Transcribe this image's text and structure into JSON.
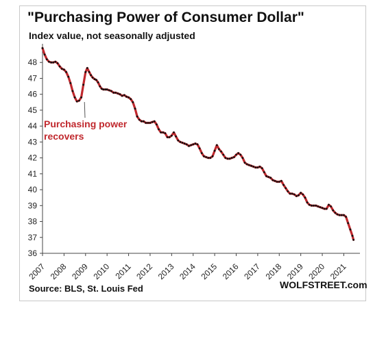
{
  "chart_data": {
    "type": "line",
    "title": "\"Purchasing  Power of Consumer Dollar\"",
    "subtitle": "Index value, not seasonally adjusted",
    "xlabel": "",
    "ylabel": "",
    "x_ticks": [
      "2007",
      "2008",
      "2009",
      "2010",
      "2011",
      "2012",
      "2013",
      "2014",
      "2015",
      "2016",
      "2017",
      "2018",
      "2019",
      "2020",
      "2021"
    ],
    "y_ticks": [
      36,
      37,
      38,
      39,
      40,
      41,
      42,
      43,
      44,
      45,
      46,
      47,
      48
    ],
    "ylim": [
      36,
      49
    ],
    "xlim": [
      2007,
      2021.75
    ],
    "grid": false,
    "line_color": "#c0282d",
    "marker_color": "#111111",
    "annotation": {
      "lines": [
        "Purchasing power",
        "recovers"
      ],
      "x": 2008.95,
      "y": 45.6
    },
    "series": [
      {
        "values": [
          [
            2007.0,
            48.9
          ],
          [
            2007.1,
            48.5
          ],
          [
            2007.2,
            48.2
          ],
          [
            2007.3,
            48.05
          ],
          [
            2007.4,
            48.0
          ],
          [
            2007.5,
            48.0
          ],
          [
            2007.6,
            48.05
          ],
          [
            2007.7,
            47.95
          ],
          [
            2007.8,
            47.75
          ],
          [
            2007.9,
            47.6
          ],
          [
            2008.0,
            47.55
          ],
          [
            2008.1,
            47.4
          ],
          [
            2008.2,
            47.1
          ],
          [
            2008.3,
            46.7
          ],
          [
            2008.4,
            46.2
          ],
          [
            2008.5,
            45.8
          ],
          [
            2008.6,
            45.55
          ],
          [
            2008.7,
            45.6
          ],
          [
            2008.8,
            45.8
          ],
          [
            2008.9,
            46.6
          ],
          [
            2009.0,
            47.4
          ],
          [
            2009.08,
            47.65
          ],
          [
            2009.17,
            47.4
          ],
          [
            2009.25,
            47.2
          ],
          [
            2009.33,
            47.05
          ],
          [
            2009.42,
            46.95
          ],
          [
            2009.5,
            46.9
          ],
          [
            2009.58,
            46.75
          ],
          [
            2009.67,
            46.5
          ],
          [
            2009.75,
            46.35
          ],
          [
            2009.83,
            46.3
          ],
          [
            2009.92,
            46.3
          ],
          [
            2010.0,
            46.3
          ],
          [
            2010.1,
            46.25
          ],
          [
            2010.2,
            46.2
          ],
          [
            2010.3,
            46.1
          ],
          [
            2010.4,
            46.1
          ],
          [
            2010.5,
            46.05
          ],
          [
            2010.6,
            46.0
          ],
          [
            2010.7,
            45.9
          ],
          [
            2010.8,
            45.95
          ],
          [
            2010.9,
            45.85
          ],
          [
            2011.0,
            45.8
          ],
          [
            2011.1,
            45.7
          ],
          [
            2011.2,
            45.5
          ],
          [
            2011.3,
            45.1
          ],
          [
            2011.4,
            44.6
          ],
          [
            2011.5,
            44.4
          ],
          [
            2011.6,
            44.3
          ],
          [
            2011.7,
            44.3
          ],
          [
            2011.8,
            44.2
          ],
          [
            2011.9,
            44.2
          ],
          [
            2012.0,
            44.2
          ],
          [
            2012.1,
            44.25
          ],
          [
            2012.2,
            44.3
          ],
          [
            2012.3,
            44.1
          ],
          [
            2012.4,
            43.8
          ],
          [
            2012.5,
            43.6
          ],
          [
            2012.6,
            43.6
          ],
          [
            2012.7,
            43.55
          ],
          [
            2012.8,
            43.3
          ],
          [
            2012.9,
            43.3
          ],
          [
            2013.0,
            43.4
          ],
          [
            2013.1,
            43.6
          ],
          [
            2013.2,
            43.35
          ],
          [
            2013.3,
            43.1
          ],
          [
            2013.4,
            43.0
          ],
          [
            2013.5,
            42.95
          ],
          [
            2013.6,
            42.9
          ],
          [
            2013.7,
            42.85
          ],
          [
            2013.8,
            42.75
          ],
          [
            2013.9,
            42.8
          ],
          [
            2014.0,
            42.85
          ],
          [
            2014.1,
            42.9
          ],
          [
            2014.2,
            42.85
          ],
          [
            2014.3,
            42.6
          ],
          [
            2014.4,
            42.3
          ],
          [
            2014.5,
            42.1
          ],
          [
            2014.6,
            42.05
          ],
          [
            2014.7,
            42.0
          ],
          [
            2014.8,
            42.0
          ],
          [
            2014.9,
            42.1
          ],
          [
            2015.0,
            42.45
          ],
          [
            2015.1,
            42.8
          ],
          [
            2015.2,
            42.55
          ],
          [
            2015.3,
            42.4
          ],
          [
            2015.4,
            42.2
          ],
          [
            2015.5,
            42.0
          ],
          [
            2015.6,
            41.95
          ],
          [
            2015.7,
            41.95
          ],
          [
            2015.8,
            42.0
          ],
          [
            2015.9,
            42.05
          ],
          [
            2016.0,
            42.2
          ],
          [
            2016.1,
            42.3
          ],
          [
            2016.2,
            42.2
          ],
          [
            2016.3,
            42.0
          ],
          [
            2016.4,
            41.7
          ],
          [
            2016.5,
            41.6
          ],
          [
            2016.6,
            41.55
          ],
          [
            2016.7,
            41.5
          ],
          [
            2016.8,
            41.45
          ],
          [
            2016.9,
            41.4
          ],
          [
            2017.0,
            41.4
          ],
          [
            2017.1,
            41.45
          ],
          [
            2017.2,
            41.35
          ],
          [
            2017.3,
            41.1
          ],
          [
            2017.4,
            40.85
          ],
          [
            2017.5,
            40.8
          ],
          [
            2017.6,
            40.75
          ],
          [
            2017.7,
            40.6
          ],
          [
            2017.8,
            40.55
          ],
          [
            2017.9,
            40.5
          ],
          [
            2018.0,
            40.5
          ],
          [
            2018.1,
            40.55
          ],
          [
            2018.2,
            40.3
          ],
          [
            2018.3,
            40.1
          ],
          [
            2018.4,
            39.9
          ],
          [
            2018.5,
            39.75
          ],
          [
            2018.6,
            39.75
          ],
          [
            2018.7,
            39.7
          ],
          [
            2018.8,
            39.6
          ],
          [
            2018.9,
            39.65
          ],
          [
            2019.0,
            39.8
          ],
          [
            2019.1,
            39.7
          ],
          [
            2019.2,
            39.5
          ],
          [
            2019.3,
            39.2
          ],
          [
            2019.4,
            39.05
          ],
          [
            2019.5,
            39.0
          ],
          [
            2019.6,
            39.0
          ],
          [
            2019.7,
            39.0
          ],
          [
            2019.8,
            38.95
          ],
          [
            2019.9,
            38.9
          ],
          [
            2020.0,
            38.85
          ],
          [
            2020.1,
            38.8
          ],
          [
            2020.2,
            38.8
          ],
          [
            2020.3,
            39.05
          ],
          [
            2020.4,
            38.95
          ],
          [
            2020.5,
            38.7
          ],
          [
            2020.6,
            38.55
          ],
          [
            2020.7,
            38.45
          ],
          [
            2020.8,
            38.4
          ],
          [
            2020.9,
            38.4
          ],
          [
            2021.0,
            38.4
          ],
          [
            2021.1,
            38.3
          ],
          [
            2021.2,
            37.9
          ],
          [
            2021.3,
            37.5
          ],
          [
            2021.4,
            37.1
          ],
          [
            2021.45,
            36.85
          ]
        ]
      }
    ]
  },
  "footer": {
    "source": "Source: BLS, St. Louis Fed",
    "brand": "WOLFSTREET.com"
  }
}
